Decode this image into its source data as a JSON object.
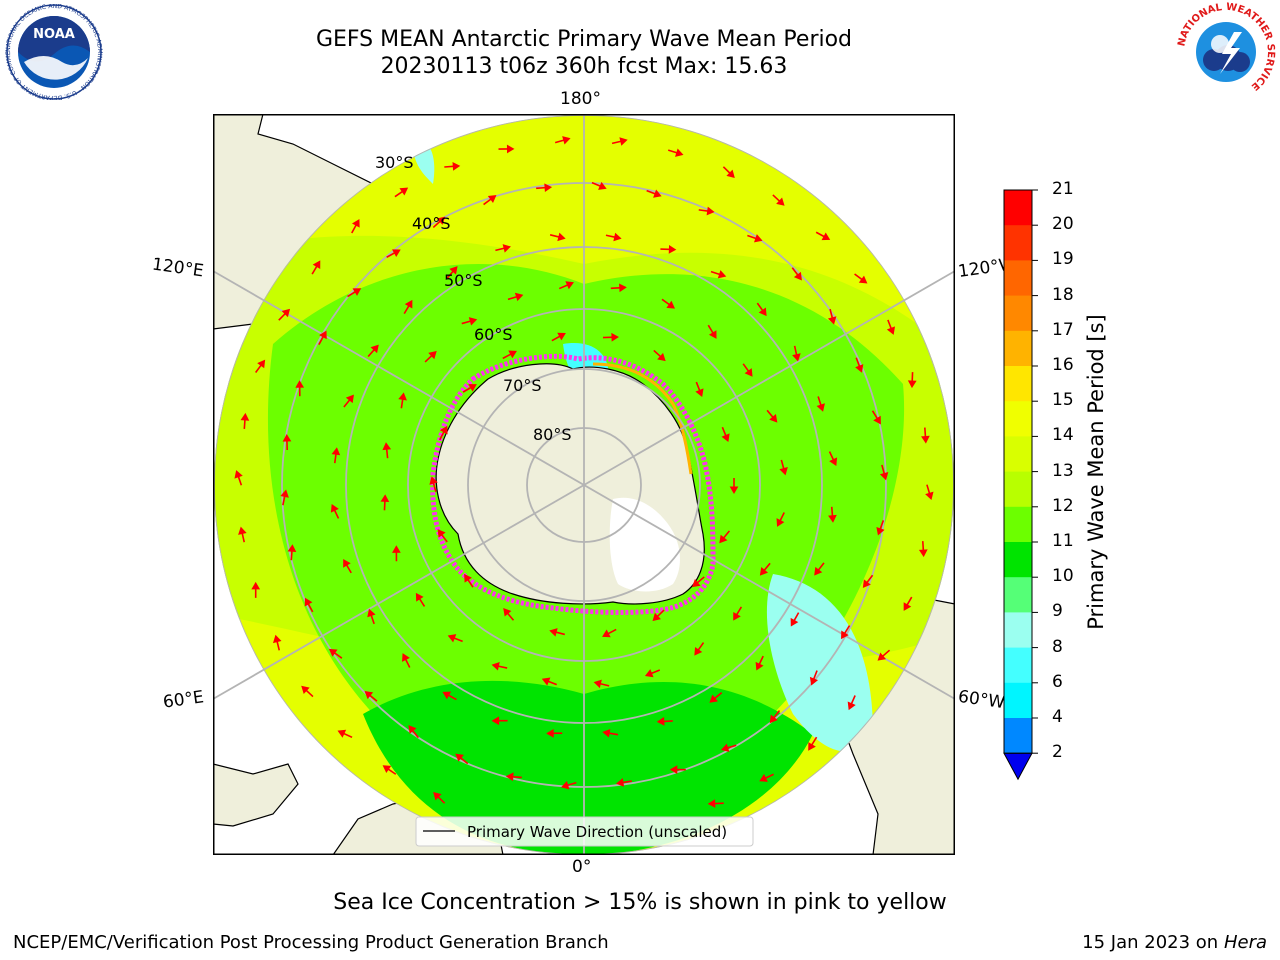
{
  "header": {
    "title_line1": "GEFS MEAN Antarctic Primary Wave Mean Period",
    "title_line2": "20230113 t06z 360h fcst   Max: 15.63"
  },
  "logos": {
    "noaa_text": "NOAA",
    "noaa_ring_text": "NATIONAL OCEANIC AND ATMOSPHERIC ADMINISTRATION · U.S. DEPARTMENT OF COMMERCE",
    "nws_ring_text": "NATIONAL WEATHER SERVICE"
  },
  "map": {
    "projection": "south-polar-stereographic",
    "longitude_labels": {
      "top": "180°",
      "bottom": "0°",
      "left_upper": "120°E",
      "right_upper": "120°W",
      "left_lower": "60°E",
      "right_lower": "60°W"
    },
    "latitude_labels": [
      "30°S",
      "40°S",
      "50°S",
      "60°S",
      "70°S",
      "80°S"
    ],
    "legend_label": "Primary Wave Direction (unscaled)",
    "colors": {
      "land": "#efefdb",
      "arrow": "#ff0000",
      "ice": "#ff33ee",
      "grid": "#b4b4b4"
    }
  },
  "colorbar": {
    "label": "Primary Wave Mean Period [s]",
    "ticks": [
      "21",
      "20",
      "19",
      "18",
      "17",
      "16",
      "15",
      "14",
      "13",
      "12",
      "11",
      "10",
      "9",
      "8",
      "6",
      "4",
      "2"
    ],
    "colors": [
      "#ff0000",
      "#ff3300",
      "#ff6600",
      "#ff8800",
      "#ffb300",
      "#ffe600",
      "#f0ff00",
      "#d9ff00",
      "#b8ff00",
      "#6cff00",
      "#00e400",
      "#55ff77",
      "#9bfff0",
      "#44ffff",
      "#00f5ff",
      "#0088ff",
      "#0000ee"
    ],
    "extend_color": "#0000ee"
  },
  "caption": "Sea Ice Concentration > 15% is shown in pink to yellow",
  "footer": {
    "left": "NCEP/EMC/Verification Post Processing Product Generation Branch",
    "right_date": "15 Jan 2023 on",
    "right_host": "Hera"
  }
}
